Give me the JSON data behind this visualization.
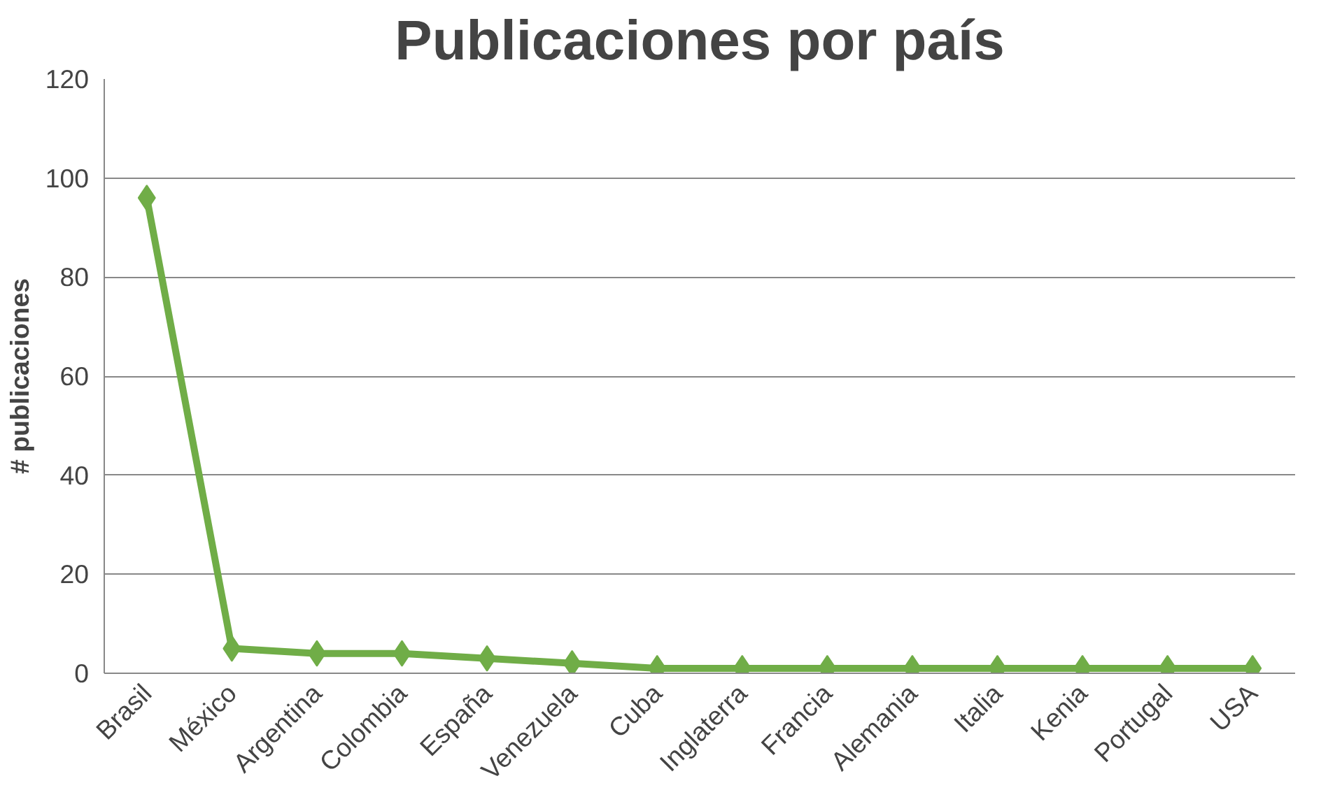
{
  "chart_data": {
    "type": "line",
    "title": "Publicaciones por país",
    "ylabel": "# publicaciones",
    "categories": [
      "Brasil",
      "México",
      "Argentina",
      "Colombia",
      "España",
      "Venezuela",
      "Cuba",
      "Inglaterra",
      "Francia",
      "Alemania",
      "Italia",
      "Kenia",
      "Portugal",
      "USA"
    ],
    "series": [
      {
        "color": "#70ad47",
        "values": [
          96,
          5,
          4,
          4,
          3,
          2,
          1,
          1,
          1,
          1,
          1,
          1,
          1,
          1
        ]
      }
    ],
    "ylim": [
      0,
      120
    ],
    "yticks": [
      0,
      20,
      40,
      60,
      80,
      100,
      120
    ],
    "grid": "y",
    "marker": "diamond",
    "line_style": "solid"
  }
}
